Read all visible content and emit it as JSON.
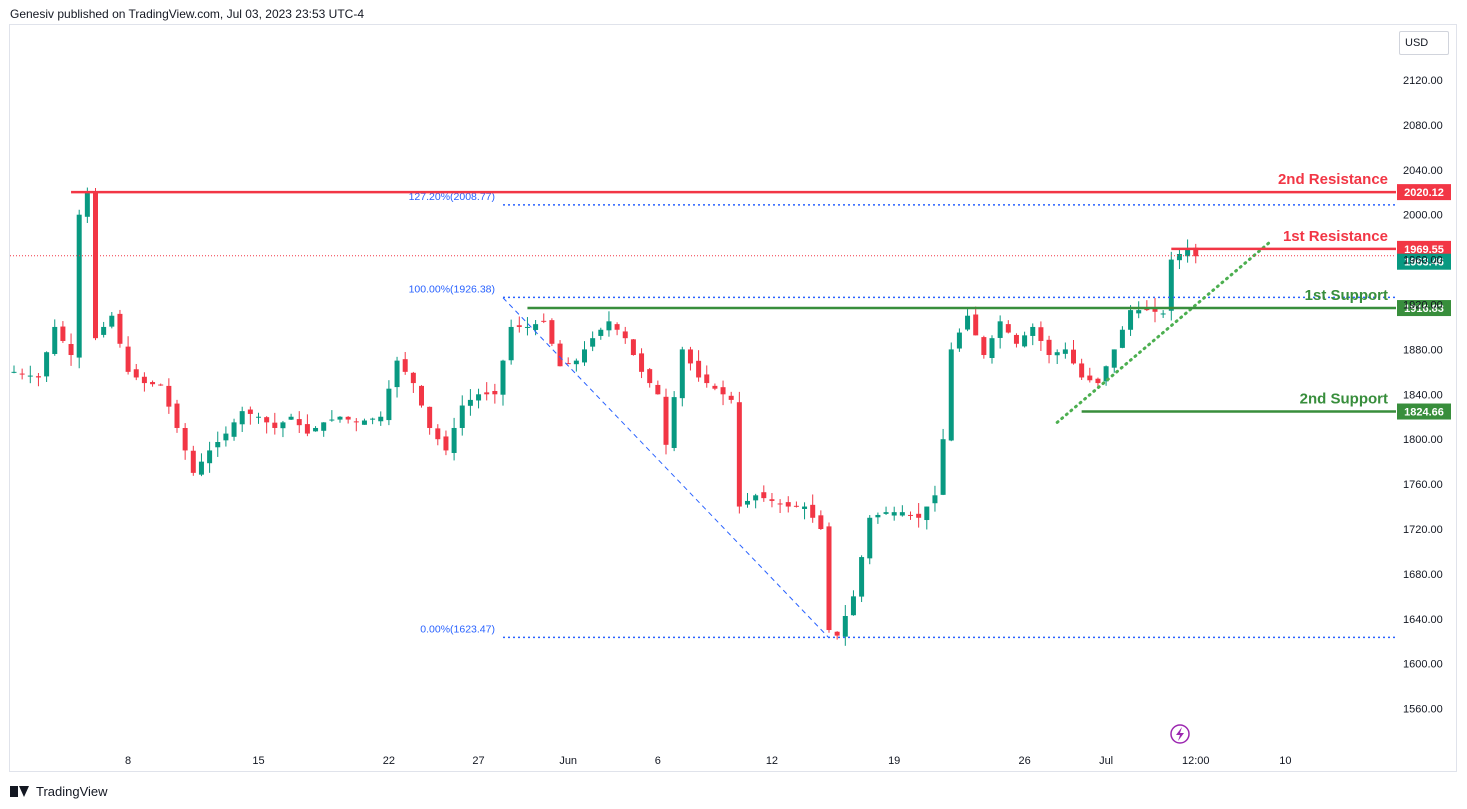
{
  "header": {
    "published": "Genesiv published on TradingView.com, Jul 03, 2023 23:53 UTC-4"
  },
  "footer": {
    "brand": "TradingView"
  },
  "currency": "USD",
  "colors": {
    "up": "#089981",
    "down": "#f23645",
    "resistance": "#f23645",
    "support": "#388e3c",
    "fib": "#2962ff",
    "trend": "#4caf50"
  },
  "chart_data": {
    "type": "candlestick",
    "symbol_price_axis": {
      "ylim": [
        1530,
        2160
      ],
      "ticks": [
        1560,
        1600,
        1640,
        1680,
        1720,
        1760,
        1800,
        1840,
        1880,
        1920,
        1960,
        2000,
        2040,
        2080,
        2120
      ],
      "tick_labels": [
        "1560.00",
        "1600.00",
        "1640.00",
        "1680.00",
        "1720.00",
        "1760.00",
        "1800.00",
        "1840.00",
        "1880.00",
        "1920.00",
        "1960.00",
        "2000.00",
        "2040.00",
        "2080.00",
        "2120.00"
      ]
    },
    "time_axis": {
      "tick_labels": [
        "8",
        "15",
        "22",
        "27",
        "Jun",
        "6",
        "12",
        "19",
        "26",
        "Jul",
        "12:00",
        "10"
      ],
      "tick_index": [
        14,
        30,
        46,
        57,
        68,
        79,
        93,
        108,
        124,
        134,
        145,
        156
      ]
    },
    "price_path": [
      [
        0,
        1860
      ],
      [
        3,
        1855
      ],
      [
        5,
        1900
      ],
      [
        7,
        1875
      ],
      [
        8,
        2000
      ],
      [
        9,
        2020
      ],
      [
        10,
        1890
      ],
      [
        12,
        1910
      ],
      [
        14,
        1860
      ],
      [
        16,
        1850
      ],
      [
        18,
        1848
      ],
      [
        20,
        1810
      ],
      [
        22,
        1770
      ],
      [
        24,
        1790
      ],
      [
        26,
        1805
      ],
      [
        28,
        1825
      ],
      [
        30,
        1820
      ],
      [
        32,
        1810
      ],
      [
        34,
        1820
      ],
      [
        36,
        1805
      ],
      [
        38,
        1815
      ],
      [
        40,
        1820
      ],
      [
        42,
        1815
      ],
      [
        45,
        1820
      ],
      [
        47,
        1870
      ],
      [
        49,
        1850
      ],
      [
        51,
        1810
      ],
      [
        53,
        1790
      ],
      [
        55,
        1830
      ],
      [
        57,
        1840
      ],
      [
        59,
        1840
      ],
      [
        61,
        1900
      ],
      [
        63,
        1900
      ],
      [
        65,
        1905
      ],
      [
        67,
        1865
      ],
      [
        69,
        1870
      ],
      [
        71,
        1890
      ],
      [
        73,
        1905
      ],
      [
        75,
        1890
      ],
      [
        77,
        1860
      ],
      [
        79,
        1840
      ],
      [
        80,
        1795
      ],
      [
        82,
        1880
      ],
      [
        84,
        1855
      ],
      [
        86,
        1845
      ],
      [
        88,
        1835
      ],
      [
        89,
        1740
      ],
      [
        91,
        1750
      ],
      [
        93,
        1745
      ],
      [
        95,
        1740
      ],
      [
        97,
        1740
      ],
      [
        99,
        1720
      ],
      [
        100,
        1630
      ],
      [
        101,
        1625
      ],
      [
        103,
        1660
      ],
      [
        105,
        1730
      ],
      [
        107,
        1735
      ],
      [
        109,
        1735
      ],
      [
        111,
        1730
      ],
      [
        113,
        1750
      ],
      [
        114,
        1800
      ],
      [
        115,
        1880
      ],
      [
        117,
        1910
      ],
      [
        119,
        1875
      ],
      [
        121,
        1905
      ],
      [
        123,
        1885
      ],
      [
        125,
        1900
      ],
      [
        127,
        1875
      ],
      [
        129,
        1880
      ],
      [
        131,
        1855
      ],
      [
        133,
        1850
      ],
      [
        135,
        1880
      ],
      [
        137,
        1915
      ],
      [
        139,
        1915
      ],
      [
        141,
        1912
      ],
      [
        142,
        1960
      ],
      [
        144,
        1970
      ],
      [
        145,
        1963
      ]
    ],
    "levels": [
      {
        "label": "2nd Resistance",
        "value": 2020.12,
        "value_label": "2020.12",
        "kind": "resistance"
      },
      {
        "label": "1st Resistance",
        "value": 1969.55,
        "value_label": "1969.55",
        "kind": "resistance"
      },
      {
        "label": "1st Support",
        "value": 1916.83,
        "value_label": "1916.83",
        "kind": "support"
      },
      {
        "label": "2nd Support",
        "value": 1824.66,
        "value_label": "1824.66",
        "kind": "support"
      }
    ],
    "current_price": {
      "value": 1963.46,
      "label": "1963.46"
    },
    "fibonacci": [
      {
        "label": "127.20%(2008.77)",
        "value": 2008.77
      },
      {
        "label": "100.00%(1926.38)",
        "value": 1926.38
      },
      {
        "label": "0.00%(1623.47)",
        "value": 1623.47
      }
    ],
    "trendline": {
      "from": [
        128,
        1815
      ],
      "to": [
        154,
        1975
      ]
    },
    "fib_drawing_line": {
      "from": [
        60,
        1926
      ],
      "to": [
        100,
        1623
      ]
    }
  }
}
